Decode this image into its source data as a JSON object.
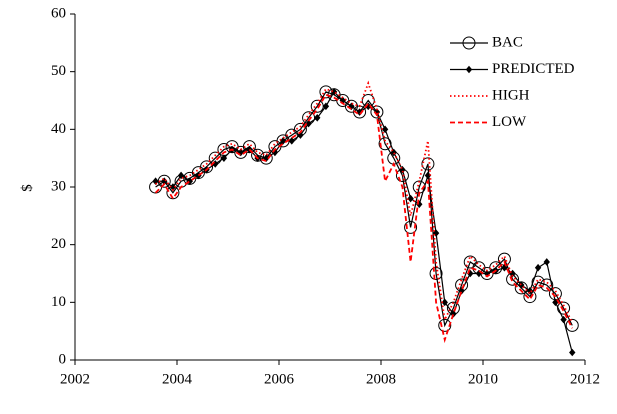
{
  "chart_data": {
    "type": "line",
    "ylabel": "$",
    "xlim": [
      2002,
      2012
    ],
    "xticks": [
      2002,
      2004,
      2006,
      2008,
      2010,
      2012
    ],
    "ylim": [
      0,
      60
    ],
    "yticks": [
      0,
      10,
      20,
      30,
      40,
      50,
      60
    ],
    "grid": false,
    "legend": "upper right",
    "x": [
      2003.58,
      2003.75,
      2003.92,
      2004.08,
      2004.25,
      2004.42,
      2004.58,
      2004.75,
      2004.92,
      2005.08,
      2005.25,
      2005.42,
      2005.58,
      2005.75,
      2005.92,
      2006.08,
      2006.25,
      2006.42,
      2006.58,
      2006.75,
      2006.92,
      2007.08,
      2007.25,
      2007.42,
      2007.58,
      2007.75,
      2007.92,
      2008.08,
      2008.25,
      2008.42,
      2008.58,
      2008.75,
      2008.92,
      2009.08,
      2009.25,
      2009.42,
      2009.58,
      2009.75,
      2009.92,
      2010.08,
      2010.25,
      2010.42,
      2010.58,
      2010.75,
      2010.92,
      2011.08,
      2011.25,
      2011.42,
      2011.58,
      2011.75
    ],
    "series": [
      {
        "name": "BAC",
        "color": "#000000",
        "marker": "circle",
        "dash": "solid",
        "values": [
          30,
          31,
          29,
          31,
          31.5,
          32.5,
          33.5,
          35,
          36.5,
          37,
          36,
          37,
          35.5,
          35,
          37,
          38,
          39,
          40,
          42,
          44,
          46.5,
          46,
          45,
          44,
          43,
          45,
          43,
          37.5,
          35,
          32,
          23,
          30,
          34,
          15,
          6,
          9,
          13,
          17,
          16,
          15,
          16,
          17.5,
          14,
          12.5,
          11,
          13.5,
          13,
          11.5,
          9,
          6
        ]
      },
      {
        "name": "PREDICTED",
        "color": "#000000",
        "marker": "diamond",
        "dash": "solid",
        "values": [
          31,
          31,
          30,
          32,
          31,
          32,
          33,
          34,
          35,
          36.5,
          36,
          36.5,
          35,
          35,
          36,
          38,
          38,
          39,
          41,
          42,
          44,
          46.5,
          45,
          44,
          43,
          44,
          43,
          40,
          36,
          33,
          28,
          27,
          32,
          22,
          10,
          8,
          12,
          15,
          15,
          15,
          15.5,
          16,
          15,
          13,
          12,
          16,
          17,
          10,
          7,
          1.3
        ]
      },
      {
        "name": "HIGH",
        "color": "#ff0000",
        "marker": "none",
        "dash": "dotted",
        "values": [
          30.5,
          31.5,
          29.5,
          31.5,
          32,
          33,
          34,
          35.5,
          37,
          37.5,
          36.5,
          37.5,
          36,
          35.5,
          37.5,
          38.5,
          39.5,
          40.5,
          42.5,
          44.5,
          47,
          46.5,
          45.5,
          44.5,
          44,
          48,
          43.5,
          38,
          36,
          33,
          25,
          31,
          38,
          17,
          7,
          10,
          14,
          18,
          16.5,
          15.5,
          16.5,
          18,
          14.5,
          13,
          11.5,
          14,
          13.5,
          12,
          9.5,
          6.5
        ]
      },
      {
        "name": "LOW",
        "color": "#ff0000",
        "marker": "none",
        "dash": "dashed",
        "values": [
          29,
          30.5,
          28,
          30,
          31,
          32,
          33,
          34.5,
          36,
          36.5,
          35.5,
          36.5,
          35,
          34.5,
          36.5,
          37.5,
          38.5,
          39.5,
          41.5,
          43.5,
          46,
          45.5,
          44.5,
          43.5,
          42.5,
          44.5,
          42.5,
          31,
          34,
          30,
          17,
          29,
          31,
          10,
          3.5,
          8,
          12,
          16,
          15.5,
          14.5,
          15.5,
          17,
          13.5,
          12,
          10.5,
          13,
          12.5,
          11,
          8.5,
          5.5
        ]
      }
    ]
  }
}
